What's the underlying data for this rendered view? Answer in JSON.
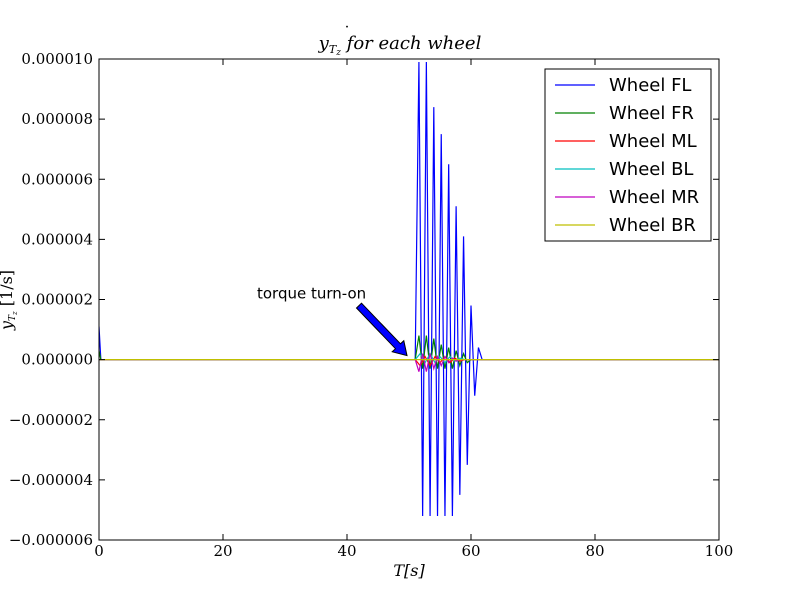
{
  "chart_data": {
    "type": "line",
    "title": "ẏ_{T_z} for each wheel",
    "xlabel": "T[s]",
    "ylabel": "ẏ_{T_z} [1/s]",
    "xlim": [
      0,
      100
    ],
    "ylim": [
      -6e-06,
      1e-05
    ],
    "xticks": [
      0,
      20,
      40,
      60,
      80,
      100
    ],
    "xtick_labels": [
      "0",
      "20",
      "40",
      "60",
      "80",
      "100"
    ],
    "yticks": [
      -6e-06,
      -4e-06,
      -2e-06,
      0,
      2e-06,
      4e-06,
      6e-06,
      8e-06,
      1e-05
    ],
    "ytick_labels": [
      "−0.000006",
      "−0.000004",
      "−0.000002",
      "0.000000",
      "0.000002",
      "0.000004",
      "0.000006",
      "0.000008",
      "0.000010"
    ],
    "grid": false,
    "legend_position": "top-right",
    "series": [
      {
        "name": "Wheel FL",
        "color": "#0000ff",
        "x": [
          0,
          0.3,
          0.6,
          51.0,
          51.6,
          52.2,
          52.8,
          53.4,
          54.0,
          54.6,
          55.2,
          55.8,
          56.4,
          57.0,
          57.6,
          58.2,
          58.8,
          59.4,
          60.0,
          60.6,
          61.2,
          61.8,
          100
        ],
        "y": [
          1.1e-06,
          0,
          0,
          0,
          9.9e-06,
          -5.2e-06,
          9.9e-06,
          -5.2e-06,
          8.4e-06,
          -5.2e-06,
          7.5e-06,
          -5.2e-06,
          6.5e-06,
          -5.2e-06,
          5.1e-06,
          -4.5e-06,
          4.1e-06,
          -3.5e-06,
          1.8e-06,
          -1.2e-06,
          4e-07,
          0,
          0
        ]
      },
      {
        "name": "Wheel FR",
        "color": "#008000",
        "x": [
          0,
          0.3,
          0.6,
          51.0,
          51.6,
          52.2,
          52.8,
          53.4,
          54.0,
          54.6,
          55.2,
          55.8,
          56.4,
          57.0,
          57.6,
          58.2,
          58.8,
          59.4,
          60.0,
          100
        ],
        "y": [
          3e-07,
          0,
          0,
          0,
          8e-07,
          -3e-07,
          8e-07,
          -3e-07,
          7e-07,
          -3e-07,
          5e-07,
          -3e-07,
          4e-07,
          -3e-07,
          3e-07,
          -2e-07,
          2e-07,
          -1e-07,
          0,
          0
        ]
      },
      {
        "name": "Wheel ML",
        "color": "#ff0000",
        "x": [
          0,
          51.0,
          51.8,
          52.6,
          53.4,
          54.2,
          55.0,
          55.8,
          56.6,
          57.4,
          58.2,
          59.0,
          100
        ],
        "y": [
          0,
          0,
          -2e-07,
          1e-07,
          -2e-07,
          1e-07,
          -1e-07,
          1e-07,
          -1e-07,
          5e-08,
          -5e-08,
          0,
          0
        ]
      },
      {
        "name": "Wheel BL",
        "color": "#00bfbf",
        "x": [
          0,
          51.0,
          51.8,
          52.6,
          53.4,
          54.2,
          55.0,
          55.8,
          56.6,
          57.4,
          58.2,
          59.0,
          100
        ],
        "y": [
          0,
          0,
          2e-07,
          -1e-07,
          2e-07,
          -1e-07,
          1e-07,
          -1e-07,
          1e-07,
          -5e-08,
          5e-08,
          0,
          0
        ]
      },
      {
        "name": "Wheel MR",
        "color": "#bf00bf",
        "x": [
          0,
          51.0,
          51.6,
          52.2,
          52.8,
          53.4,
          54.0,
          54.6,
          55.2,
          55.8,
          56.4,
          57.0,
          57.6,
          58.2,
          100
        ],
        "y": [
          0,
          0,
          -4e-07,
          2e-07,
          -4e-07,
          2e-07,
          -3e-07,
          1e-07,
          -2e-07,
          1e-07,
          -1e-07,
          5e-08,
          -5e-08,
          0,
          0
        ]
      },
      {
        "name": "Wheel BR",
        "color": "#bfbf00",
        "x": [
          0,
          100
        ],
        "y": [
          0,
          0
        ]
      }
    ],
    "annotation": {
      "text": "torque turn-on",
      "x": 50,
      "y": 0,
      "text_x": 25,
      "text_y": 2e-06
    }
  }
}
